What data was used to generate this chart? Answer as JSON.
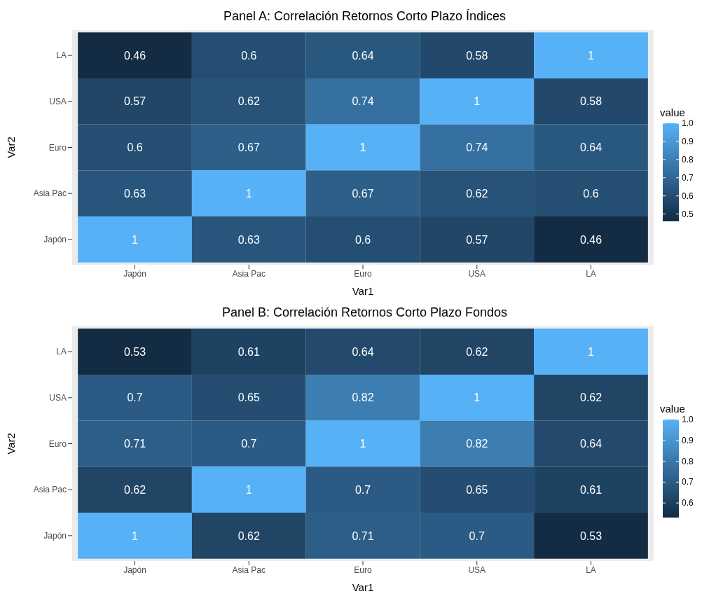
{
  "chart_data": [
    {
      "type": "heatmap",
      "title": "Panel A: Correlación Retornos Corto Plazo Índices",
      "xlabel": "Var1",
      "ylabel": "Var2",
      "clabel": "value",
      "data_labels": true,
      "categories": [
        "Japón",
        "Asia Pac",
        "Euro",
        "USA",
        "LA"
      ],
      "y_categories": [
        "LA",
        "USA",
        "Euro",
        "Asia Pac",
        "Japón"
      ],
      "cells": [
        [
          0.46,
          0.6,
          0.64,
          0.58,
          1
        ],
        [
          0.57,
          0.62,
          0.74,
          1,
          0.58
        ],
        [
          0.6,
          0.67,
          1,
          0.74,
          0.64
        ],
        [
          0.63,
          1,
          0.67,
          0.62,
          0.6
        ],
        [
          1,
          0.63,
          0.6,
          0.57,
          0.46
        ]
      ],
      "clim": [
        0.46,
        1
      ],
      "cticks": [
        0.5,
        0.6,
        0.7,
        0.8,
        0.9,
        {
          "value": 1,
          "label": "1.0"
        }
      ]
    },
    {
      "type": "heatmap",
      "title": "Panel B: Correlación Retornos Corto Plazo Fondos",
      "xlabel": "Var1",
      "ylabel": "Var2",
      "clabel": "value",
      "data_labels": true,
      "categories": [
        "Japón",
        "Asia Pac",
        "Euro",
        "USA",
        "LA"
      ],
      "y_categories": [
        "LA",
        "USA",
        "Euro",
        "Asia Pac",
        "Japón"
      ],
      "cells": [
        [
          0.53,
          0.61,
          0.64,
          0.62,
          1
        ],
        [
          0.7,
          0.65,
          0.82,
          1,
          0.62
        ],
        [
          0.71,
          0.7,
          1,
          0.82,
          0.64
        ],
        [
          0.62,
          1,
          0.7,
          0.65,
          0.61
        ],
        [
          1,
          0.62,
          0.71,
          0.7,
          0.53
        ]
      ],
      "clim": [
        0.53,
        1
      ],
      "cticks": [
        0.6,
        0.7,
        0.8,
        0.9,
        {
          "value": 1,
          "label": "1.0"
        }
      ]
    }
  ]
}
